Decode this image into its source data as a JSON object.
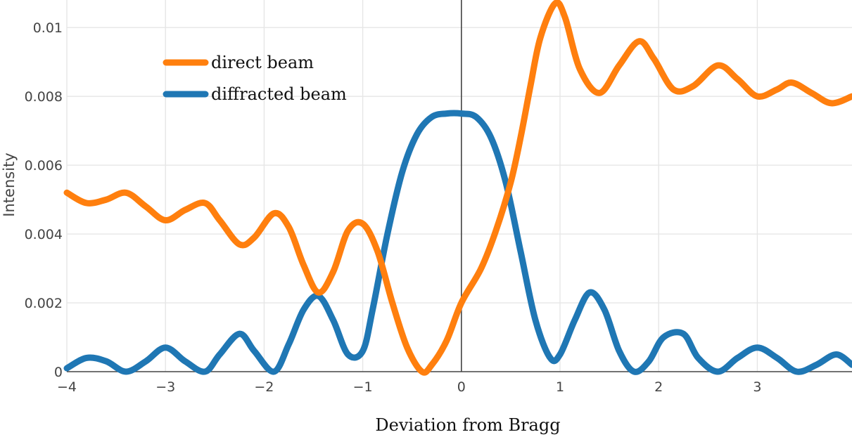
{
  "chart_data": {
    "type": "line",
    "xlabel": "Deviation from Bragg",
    "ylabel": "Intensity",
    "xlim": [
      -4,
      3.96
    ],
    "ylim": [
      0,
      0.0108
    ],
    "x_ticks": [
      -4,
      -3,
      -2,
      -1,
      0,
      1,
      2,
      3
    ],
    "x_tick_labels": [
      "−4",
      "−3",
      "−2",
      "−1",
      "0",
      "1",
      "2",
      "3"
    ],
    "y_ticks": [
      0,
      0.002,
      0.004,
      0.006,
      0.008,
      0.01
    ],
    "y_tick_labels": [
      "0",
      "0.002",
      "0.004",
      "0.006",
      "0.008",
      "0.01"
    ],
    "grid": true,
    "legend_position": "top-left",
    "series": [
      {
        "name": "direct beam",
        "color": "#ff7f0e",
        "x": [
          -4,
          -3.8,
          -3.6,
          -3.4,
          -3.2,
          -3.0,
          -2.8,
          -2.6,
          -2.45,
          -2.25,
          -2.1,
          -1.9,
          -1.75,
          -1.6,
          -1.45,
          -1.3,
          -1.15,
          -1.0,
          -0.85,
          -0.7,
          -0.55,
          -0.4,
          -0.3,
          -0.15,
          0,
          0.2,
          0.35,
          0.5,
          0.6,
          0.7,
          0.8,
          0.95,
          1.05,
          1.2,
          1.4,
          1.6,
          1.8,
          1.95,
          2.15,
          2.35,
          2.6,
          2.8,
          3.0,
          3.2,
          3.35,
          3.55,
          3.75,
          3.96
        ],
        "y": [
          0.0052,
          0.0049,
          0.005,
          0.0052,
          0.0048,
          0.0044,
          0.0047,
          0.0049,
          0.0044,
          0.0037,
          0.0039,
          0.0046,
          0.0042,
          0.0031,
          0.0023,
          0.0029,
          0.0041,
          0.0043,
          0.0035,
          0.002,
          0.0007,
          0.0,
          0.0002,
          0.0009,
          0.002,
          0.003,
          0.0041,
          0.0055,
          0.0068,
          0.0083,
          0.0097,
          0.0107,
          0.0103,
          0.0088,
          0.0081,
          0.0089,
          0.0096,
          0.0091,
          0.0082,
          0.0083,
          0.0089,
          0.0085,
          0.008,
          0.0082,
          0.0084,
          0.0081,
          0.0078,
          0.008
        ]
      },
      {
        "name": "diffracted beam",
        "color": "#1f77b4",
        "x": [
          -4,
          -3.8,
          -3.6,
          -3.4,
          -3.2,
          -3.0,
          -2.8,
          -2.6,
          -2.45,
          -2.25,
          -2.1,
          -1.9,
          -1.75,
          -1.6,
          -1.45,
          -1.3,
          -1.15,
          -1.0,
          -0.9,
          -0.75,
          -0.6,
          -0.45,
          -0.3,
          -0.15,
          0,
          0.15,
          0.3,
          0.45,
          0.6,
          0.75,
          0.9,
          1.0,
          1.15,
          1.3,
          1.45,
          1.6,
          1.75,
          1.9,
          2.05,
          2.25,
          2.4,
          2.6,
          2.8,
          3.0,
          3.2,
          3.4,
          3.6,
          3.8,
          3.96
        ],
        "y": [
          0.0001,
          0.0004,
          0.0003,
          0.0,
          0.0003,
          0.0007,
          0.0003,
          0.0,
          0.0005,
          0.0011,
          0.0006,
          0.0,
          0.0008,
          0.0018,
          0.0022,
          0.0015,
          0.0005,
          0.0006,
          0.0018,
          0.004,
          0.0058,
          0.0069,
          0.0074,
          0.0075,
          0.0075,
          0.0074,
          0.0068,
          0.0055,
          0.0035,
          0.0015,
          0.0004,
          0.0005,
          0.0015,
          0.0023,
          0.0018,
          0.0006,
          0.0,
          0.0003,
          0.001,
          0.0011,
          0.0004,
          0.0,
          0.0004,
          0.0007,
          0.0004,
          0.0,
          0.0002,
          0.0005,
          0.0002
        ]
      }
    ]
  }
}
